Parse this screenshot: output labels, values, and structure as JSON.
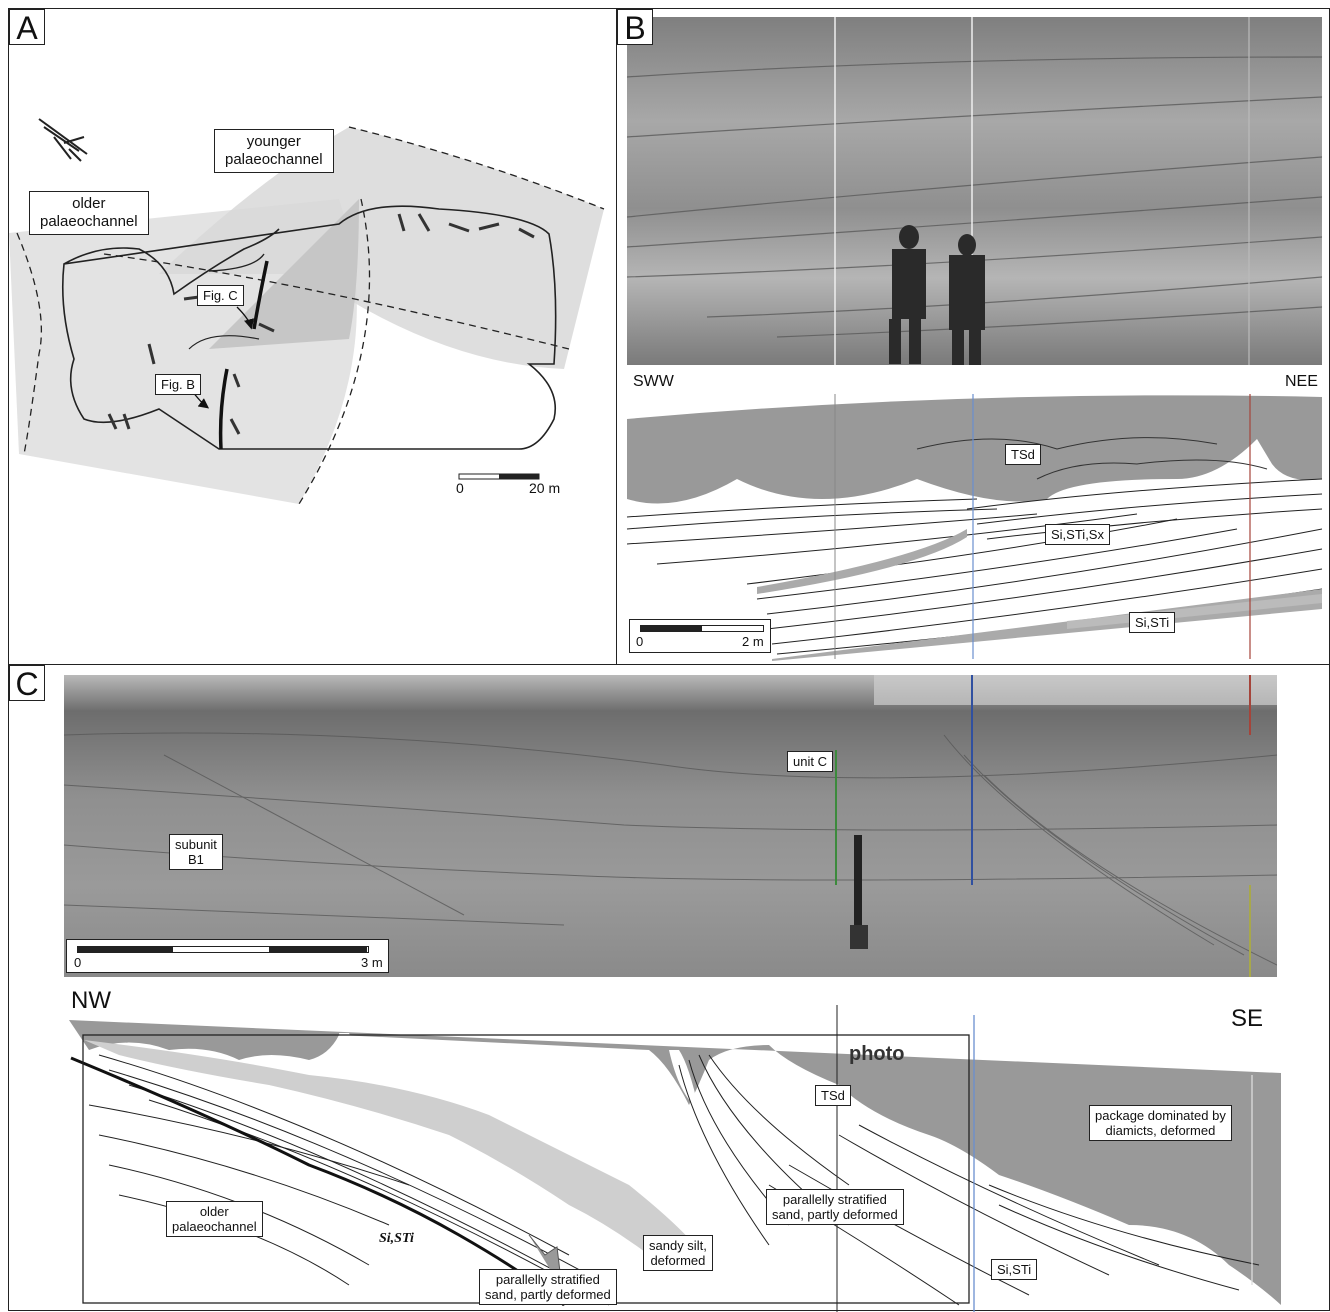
{
  "panels": {
    "a": {
      "letter": "A"
    },
    "b": {
      "letter": "B"
    },
    "c": {
      "letter": "C"
    }
  },
  "panel_a": {
    "younger_label": "younger\npalaeochannel",
    "older_label": "older\npalaeochannel",
    "fig_c": "Fig. C",
    "fig_b": "Fig. B",
    "scale": {
      "left": "0",
      "right": "20 m"
    }
  },
  "panel_b": {
    "orientation_left": "SWW",
    "orientation_right": "NEE",
    "labels": {
      "tsd": "TSd",
      "sistisx": "Si,STi,Sx",
      "sisti": "Si,STi"
    },
    "scale": {
      "left": "0",
      "right": "2 m"
    }
  },
  "panel_c": {
    "photo_labels": {
      "unit_c": "unit C",
      "subunit": "subunit\nB1"
    },
    "scale": {
      "left": "0",
      "right": "3 m"
    },
    "orientation_left": "NW",
    "orientation_right": "SE",
    "photo_frame_label": "photo",
    "labels": {
      "tsd": "TSd",
      "package": "package dominated by\ndiamicts, deformed",
      "older": "older\npalaeochannel",
      "sisti_italic": "Si,STi",
      "sandy_silt": "sandy silt,\ndeformed",
      "parallel_mid": "parallelly stratified\nsand, partly deformed",
      "parallel_low": "parallelly stratified\nsand, partly deformed",
      "sisti": "Si,STi"
    }
  },
  "colors": {
    "shade_light": "#e6e6e6",
    "shade_mid": "#c8c8c8",
    "diamict": "#999999",
    "photo_gray": "#8d8d8d"
  }
}
